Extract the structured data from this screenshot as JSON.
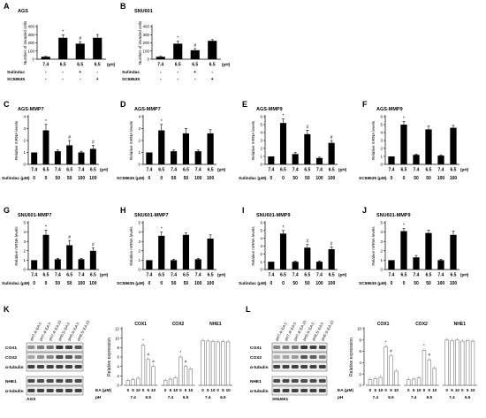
{
  "figure": {
    "panels": [
      {
        "letter": "A",
        "title": "AGS"
      },
      {
        "letter": "B",
        "title": "SNU601"
      },
      {
        "letter": "C",
        "title": "AGS-MMP7"
      },
      {
        "letter": "D",
        "title": "AGS-MMP7"
      },
      {
        "letter": "E",
        "title": "AGS-MMP9"
      },
      {
        "letter": "F",
        "title": "AGS-MMP9"
      },
      {
        "letter": "G",
        "title": "SNU601-MMP7"
      },
      {
        "letter": "H",
        "title": "SNU601-MMP7"
      },
      {
        "letter": "I",
        "title": "SNU601-MMP9"
      },
      {
        "letter": "J",
        "title": "SNU601-MMP9"
      },
      {
        "letter": "K",
        "title": ""
      },
      {
        "letter": "L",
        "title": ""
      }
    ]
  },
  "chart_data": [
    {
      "id": "A",
      "type": "bar",
      "title": "AGS",
      "ylabel": "Number of invaded cells",
      "ylim": [
        0,
        400
      ],
      "yticks": [
        0,
        100,
        200,
        300,
        400
      ],
      "categories": [
        "7.4",
        "6.5",
        "6.5",
        "6.5"
      ],
      "xunit": "(pH)",
      "values": [
        30,
        262,
        190,
        262
      ],
      "errors": [
        5,
        35,
        25,
        40
      ],
      "markers": [
        "",
        "*",
        "#",
        ""
      ],
      "treatments": [
        {
          "label": "Sulindac",
          "marks": [
            "-",
            "-",
            "+",
            "-"
          ]
        },
        {
          "label": "SC58635",
          "marks": [
            "-",
            "-",
            "-",
            "+"
          ]
        }
      ]
    },
    {
      "id": "B",
      "type": "bar",
      "title": "SNU601",
      "ylabel": "Number of invaded cells",
      "ylim": [
        0,
        400
      ],
      "yticks": [
        0,
        100,
        200,
        300,
        400
      ],
      "categories": [
        "7.4",
        "6.5",
        "6.5",
        "6.5"
      ],
      "xunit": "(pH)",
      "values": [
        30,
        190,
        110,
        225
      ],
      "errors": [
        5,
        30,
        20,
        15
      ],
      "markers": [
        "",
        "*",
        "#",
        ""
      ],
      "treatments": [
        {
          "label": "Sulindac",
          "marks": [
            "-",
            "-",
            "+",
            "-"
          ]
        },
        {
          "label": "SC58635",
          "marks": [
            "-",
            "-",
            "-",
            "+"
          ]
        }
      ]
    },
    {
      "id": "C",
      "type": "bar",
      "title": "AGS-MMP7",
      "ylabel": "Relative mRNA levels",
      "ylim": [
        0,
        4
      ],
      "yticks": [
        0,
        1,
        2,
        3,
        4
      ],
      "categories": [
        "7.4",
        "6.5",
        "7.4",
        "6.5",
        "7.4",
        "6.5"
      ],
      "xunit": "(pH)",
      "values": [
        1,
        2.85,
        1.1,
        1.6,
        1.0,
        1.3
      ],
      "errors": [
        0,
        0.5,
        0.1,
        0.4,
        0.1,
        0.3
      ],
      "markers": [
        "",
        "*",
        "",
        "#",
        "",
        "#"
      ],
      "dose_label": "Sulindac (μM)",
      "doses": [
        "0",
        "0",
        "50",
        "50",
        "100",
        "100"
      ]
    },
    {
      "id": "D",
      "type": "bar",
      "title": "AGS-MMP7",
      "ylabel": "Relative mRNA levels",
      "ylim": [
        0,
        4
      ],
      "yticks": [
        0,
        1,
        2,
        3,
        4
      ],
      "categories": [
        "7.4",
        "6.5",
        "7.4",
        "6.5",
        "7.4",
        "6.5"
      ],
      "xunit": "(pH)",
      "values": [
        1,
        2.85,
        1.1,
        2.6,
        1.1,
        2.6
      ],
      "errors": [
        0,
        0.5,
        0.1,
        0.4,
        0.1,
        0.3
      ],
      "markers": [
        "",
        "*",
        "",
        "",
        "",
        ""
      ],
      "dose_label": "SC58635 (μM)",
      "doses": [
        "0",
        "0",
        "50",
        "50",
        "100",
        "100"
      ]
    },
    {
      "id": "E",
      "type": "bar",
      "title": "AGS-MMP9",
      "ylabel": "Relative mRNA levels",
      "ylim": [
        0,
        6
      ],
      "yticks": [
        0,
        1,
        2,
        3,
        4,
        5,
        6
      ],
      "categories": [
        "7.4",
        "6.5",
        "7.4",
        "6.5",
        "7.4",
        "6.5"
      ],
      "xunit": "(pH)",
      "values": [
        1,
        5.2,
        1.3,
        3.8,
        0.8,
        2.7
      ],
      "errors": [
        0,
        0.5,
        0.2,
        0.5,
        0.1,
        0.3
      ],
      "markers": [
        "",
        "*",
        "",
        "#",
        "",
        "#"
      ],
      "dose_label": "Sulindac (μM)",
      "doses": [
        "0",
        "0",
        "50",
        "50",
        "100",
        "100"
      ]
    },
    {
      "id": "F",
      "type": "bar",
      "title": "AGS-MMP9",
      "ylabel": "Relative mRNA levels",
      "ylim": [
        0,
        6
      ],
      "yticks": [
        0,
        1,
        2,
        3,
        4,
        5,
        6
      ],
      "categories": [
        "7.4",
        "6.5",
        "7.4",
        "6.5",
        "7.4",
        "6.5"
      ],
      "xunit": "(pH)",
      "values": [
        1,
        5.0,
        1.2,
        4.4,
        1.1,
        4.6
      ],
      "errors": [
        0,
        0.4,
        0.1,
        0.4,
        0.1,
        0.3
      ],
      "markers": [
        "",
        "*",
        "",
        "",
        "",
        ""
      ],
      "dose_label": "SC58635 (μM)",
      "doses": [
        "0",
        "0",
        "50",
        "50",
        "100",
        "100"
      ]
    },
    {
      "id": "G",
      "type": "bar",
      "title": "SNU601-MMP7",
      "ylabel": "Relative mRNA levels",
      "ylim": [
        0,
        5
      ],
      "yticks": [
        0,
        1,
        2,
        3,
        4,
        5
      ],
      "categories": [
        "7.4",
        "6.5",
        "7.4",
        "6.5",
        "7.4",
        "6.5"
      ],
      "xunit": "(pH)",
      "values": [
        1,
        3.7,
        1.1,
        2.6,
        1.1,
        2.0
      ],
      "errors": [
        0,
        0.5,
        0.1,
        0.5,
        0.1,
        0.3
      ],
      "markers": [
        "",
        "*",
        "",
        "#",
        "",
        "#"
      ],
      "dose_label": "Sulindac (μM)",
      "doses": [
        "0",
        "0",
        "50",
        "50",
        "100",
        "100"
      ]
    },
    {
      "id": "H",
      "type": "bar",
      "title": "SNU601-MMP7",
      "ylabel": "Relative mRNA levels",
      "ylim": [
        0,
        5
      ],
      "yticks": [
        0,
        1,
        2,
        3,
        4,
        5
      ],
      "categories": [
        "7.4",
        "6.5",
        "7.4",
        "6.5",
        "7.4",
        "6.5"
      ],
      "xunit": "(pH)",
      "values": [
        1,
        3.6,
        1.0,
        3.7,
        1.1,
        3.3
      ],
      "errors": [
        0,
        0.4,
        0.1,
        0.2,
        0.1,
        0.4
      ],
      "markers": [
        "",
        "*",
        "",
        "",
        "",
        ""
      ],
      "dose_label": "SC58635 (μM)",
      "doses": [
        "0",
        "0",
        "50",
        "50",
        "100",
        "100"
      ]
    },
    {
      "id": "I",
      "type": "bar",
      "title": "SNU601-MMP9",
      "ylabel": "Relative mRNA levels",
      "ylim": [
        0,
        6
      ],
      "yticks": [
        0,
        1,
        2,
        3,
        4,
        5,
        6
      ],
      "categories": [
        "7.4",
        "6.5",
        "7.4",
        "6.5",
        "7.4",
        "6.5"
      ],
      "xunit": "(pH)",
      "values": [
        1,
        4.6,
        1.0,
        2.8,
        1.0,
        2.6
      ],
      "errors": [
        0,
        0.4,
        0.1,
        0.4,
        0.1,
        0.3
      ],
      "markers": [
        "",
        "*",
        "",
        "#",
        "",
        "#"
      ],
      "dose_label": "Sulindac (μM)",
      "doses": [
        "0",
        "0",
        "50",
        "50",
        "100",
        "100"
      ]
    },
    {
      "id": "J",
      "type": "bar",
      "title": "SNU601-MMP9",
      "ylabel": "Relative mRNA levels",
      "ylim": [
        0,
        5
      ],
      "yticks": [
        0,
        1,
        2,
        3,
        4,
        5
      ],
      "categories": [
        "7.4",
        "6.5",
        "7.4",
        "6.5",
        "7.4",
        "6.5"
      ],
      "xunit": "(pH)",
      "values": [
        1,
        4.1,
        1.3,
        3.9,
        1.0,
        3.7
      ],
      "errors": [
        0,
        0.3,
        0.2,
        0.3,
        0.1,
        0.4
      ],
      "markers": [
        "",
        "*",
        "",
        "",
        "",
        ""
      ],
      "dose_label": "SC58635 (μM)",
      "doses": [
        "0",
        "0",
        "50",
        "50",
        "100",
        "100"
      ]
    }
  ],
  "blots": [
    {
      "id": "K",
      "cell_line": "AGS",
      "lanes": [
        "pH7.4/ EA 0",
        "pH7.4/ EA 5",
        "pH7.4/ EA 10",
        "pH6.5/ EA 0",
        "pH6.5/ EA 5",
        "pH6.5/ EA 10"
      ],
      "bands": [
        {
          "label": "COX1",
          "intensity": [
            0.45,
            0.55,
            0.6,
            0.9,
            0.85,
            0.75
          ]
        },
        {
          "label": "COX2",
          "intensity": [
            0.35,
            0.45,
            0.5,
            0.8,
            0.75,
            0.6
          ]
        },
        {
          "label": "α-tubulin",
          "intensity": [
            0.85,
            0.85,
            0.85,
            0.85,
            0.85,
            0.85
          ]
        },
        {
          "label": "NHE1",
          "intensity": [
            0.8,
            0.8,
            0.8,
            0.8,
            0.8,
            0.8
          ]
        },
        {
          "label": "α-tubulin",
          "intensity": [
            0.85,
            0.85,
            0.85,
            0.85,
            0.85,
            0.85
          ]
        }
      ],
      "quant": {
        "ylabel": "Relative expression",
        "ylim": [
          0,
          12
        ],
        "yticks": [
          0,
          2,
          4,
          6,
          8,
          10,
          12
        ],
        "ea_label": "EA (μM)",
        "ph_label": "pH",
        "ea": [
          "0",
          "5",
          "10",
          "0",
          "5",
          "10"
        ],
        "ph": [
          "7.4",
          "6.5"
        ],
        "groups": [
          {
            "title": "COX1",
            "values": [
              1,
              1.2,
              1.5,
              8.5,
              5.5,
              4.0
            ],
            "markers": [
              "",
              "",
              "",
              "*",
              "#",
              "#"
            ]
          },
          {
            "title": "COX2",
            "values": [
              1,
              1.3,
              1.6,
              6.0,
              4.0,
              3.5
            ],
            "markers": [
              "",
              "",
              "",
              "*",
              "#",
              ""
            ]
          },
          {
            "title": "NHE1",
            "values": [
              9.5,
              9.4,
              9.3,
              9.2,
              9.3,
              9.2
            ],
            "markers": [
              "",
              "",
              "",
              "",
              "",
              ""
            ]
          }
        ]
      }
    },
    {
      "id": "L",
      "cell_line": "SNU601",
      "lanes": [
        "pH7.4/ EA 0",
        "pH7.4/ EA 5",
        "pH7.4/ EA 10",
        "pH6.5/ EA 0",
        "pH6.5/ EA 5",
        "pH6.5/ EA 10"
      ],
      "bands": [
        {
          "label": "COX1",
          "intensity": [
            0.5,
            0.55,
            0.6,
            0.9,
            0.85,
            0.8
          ]
        },
        {
          "label": "COX2",
          "intensity": [
            0.3,
            0.35,
            0.4,
            0.75,
            0.7,
            0.55
          ]
        },
        {
          "label": "α-tubulin",
          "intensity": [
            0.85,
            0.85,
            0.85,
            0.85,
            0.85,
            0.85
          ]
        },
        {
          "label": "NHE1",
          "intensity": [
            0.8,
            0.8,
            0.8,
            0.8,
            0.8,
            0.8
          ]
        },
        {
          "label": "α-tubulin",
          "intensity": [
            0.85,
            0.85,
            0.85,
            0.85,
            0.85,
            0.85
          ]
        }
      ],
      "quant": {
        "ylabel": "Relative expression",
        "ylim": [
          0,
          10
        ],
        "yticks": [
          0,
          2,
          4,
          6,
          8,
          10
        ],
        "ea_label": "EA (μM)",
        "ph_label": "pH",
        "ea": [
          "0",
          "5",
          "10",
          "0",
          "5",
          "10"
        ],
        "ph": [
          "7.4",
          "6.5"
        ],
        "groups": [
          {
            "title": "COX1",
            "values": [
              1,
              1.2,
              1.4,
              6.8,
              5.2,
              2.5
            ],
            "markers": [
              "",
              "",
              "",
              "*",
              "#",
              ""
            ]
          },
          {
            "title": "COX2",
            "values": [
              1,
              1.1,
              1.3,
              6.2,
              4.5,
              3.0
            ],
            "markers": [
              "",
              "",
              "",
              "*",
              "#",
              ""
            ]
          },
          {
            "title": "NHE1",
            "values": [
              8.0,
              7.9,
              8.0,
              7.8,
              7.9,
              7.8
            ],
            "markers": [
              "",
              "",
              "",
              "",
              "",
              ""
            ]
          }
        ]
      }
    }
  ]
}
